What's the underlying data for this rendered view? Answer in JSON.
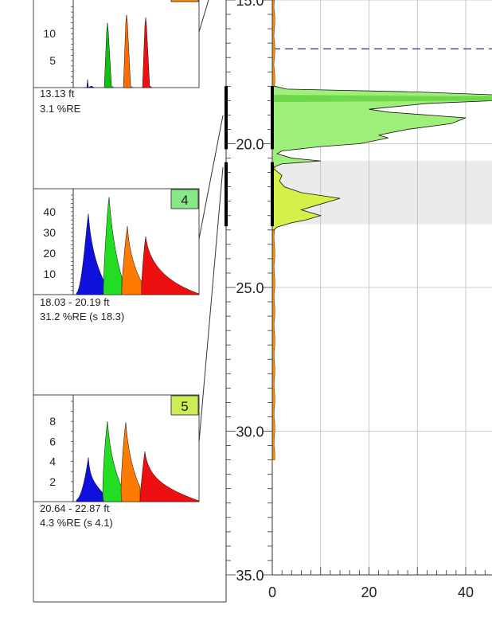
{
  "chart_data": [
    {
      "type": "area",
      "panel": "3",
      "caption_range": "13.13 ft",
      "caption_re": "3.1 %RE",
      "badge": "",
      "yticks": [
        5,
        10
      ],
      "peaks": [
        {
          "color": "#1010c0",
          "value": 1.5
        },
        {
          "color": "#10c010",
          "value": 12
        },
        {
          "color": "#ff6a00",
          "value": 13.5
        },
        {
          "color": "#ee1010",
          "value": 13
        }
      ]
    },
    {
      "type": "area",
      "panel": "4",
      "caption_range": "18.03 - 20.19 ft",
      "caption_re": "31.2 %RE (s 18.3)",
      "badge": "4",
      "badge_color": "#88e888",
      "yticks": [
        10,
        20,
        30,
        40
      ],
      "peaks": [
        {
          "color": "#1010dd",
          "value": 39
        },
        {
          "color": "#22dd22",
          "value": 47
        },
        {
          "color": "#ff7a00",
          "value": 33
        },
        {
          "color": "#ee1010",
          "value": 28
        }
      ]
    },
    {
      "type": "area",
      "panel": "5",
      "caption_range": "20.64 - 22.87 ft",
      "caption_re": "4.3 %RE (s 4.1)",
      "badge": "5",
      "badge_color": "#ccee55",
      "yticks": [
        2,
        4,
        6,
        8
      ],
      "peaks": [
        {
          "color": "#1010dd",
          "value": 4.4
        },
        {
          "color": "#22dd22",
          "value": 8
        },
        {
          "color": "#ff7a00",
          "value": 7.9
        },
        {
          "color": "#ee1010",
          "value": 5
        }
      ]
    },
    {
      "type": "area",
      "panel": "profile",
      "y_axis_labels": [
        "15.0",
        "20.0",
        "25.0",
        "30.0",
        "35.0"
      ],
      "y_ticks": [
        15,
        20,
        25,
        30,
        35
      ],
      "ylim": [
        15,
        35
      ],
      "x_axis_labels": [
        "0",
        "20",
        "40"
      ],
      "x_ticks": [
        0,
        20,
        40
      ],
      "xlim": [
        -1,
        46
      ],
      "dashed_line_depth": 16.7,
      "shaded_band": [
        20.6,
        22.8
      ],
      "green_profile": [
        [
          18.0,
          0.5
        ],
        [
          18.1,
          3
        ],
        [
          18.2,
          30
        ],
        [
          18.3,
          46
        ],
        [
          18.5,
          46
        ],
        [
          18.6,
          32
        ],
        [
          18.8,
          20
        ],
        [
          18.9,
          24
        ],
        [
          19.1,
          40
        ],
        [
          19.3,
          37
        ],
        [
          19.5,
          28
        ],
        [
          19.7,
          22
        ],
        [
          19.8,
          24
        ],
        [
          20.0,
          18
        ],
        [
          20.1,
          10
        ],
        [
          20.25,
          2
        ],
        [
          20.35,
          1
        ],
        [
          20.5,
          4
        ],
        [
          20.6,
          10
        ],
        [
          20.7,
          2
        ],
        [
          20.8,
          0.5
        ]
      ],
      "yellow_profile": [
        [
          20.9,
          0.5
        ],
        [
          21.1,
          2
        ],
        [
          21.3,
          1.5
        ],
        [
          21.5,
          2.5
        ],
        [
          21.7,
          6
        ],
        [
          21.9,
          14
        ],
        [
          22.1,
          10
        ],
        [
          22.3,
          6
        ],
        [
          22.5,
          10
        ],
        [
          22.65,
          7
        ],
        [
          22.75,
          4
        ],
        [
          22.9,
          1
        ],
        [
          23.0,
          0.3
        ]
      ],
      "black_marks": [
        [
          18.0,
          20.19
        ],
        [
          20.64,
          22.87
        ]
      ]
    }
  ]
}
